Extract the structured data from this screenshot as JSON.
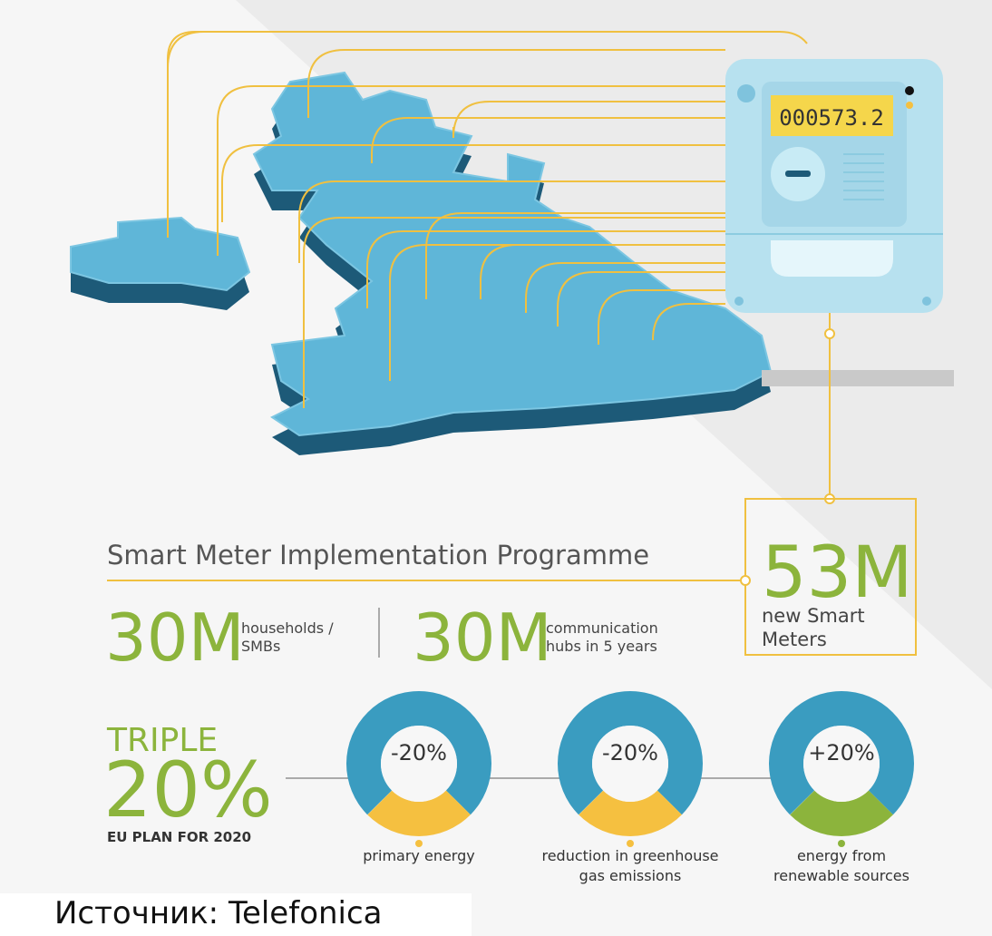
{
  "meter": {
    "display": "000573.2"
  },
  "programme": {
    "title": "Smart Meter Implementation Programme",
    "total": {
      "value": "53M",
      "label_lines": [
        "new Smart",
        "Meters"
      ]
    },
    "stats": [
      {
        "value": "30M",
        "label_lines": [
          "households /",
          "SMBs"
        ]
      },
      {
        "value": "30M",
        "label_lines": [
          "communication",
          "hubs in 5 years"
        ]
      }
    ]
  },
  "eu_plan": {
    "headline": "TRIPLE",
    "value": "20%",
    "caption": "EU PLAN FOR 2020",
    "targets": [
      {
        "value": "-20%",
        "label_lines": [
          "primary energy"
        ]
      },
      {
        "value": "-20%",
        "label_lines": [
          "reduction in greenhouse",
          "gas emissions"
        ]
      },
      {
        "value": "+20%",
        "label_lines": [
          "energy from",
          "renewable sources"
        ]
      }
    ]
  },
  "source": "Источник: Telefonica"
}
